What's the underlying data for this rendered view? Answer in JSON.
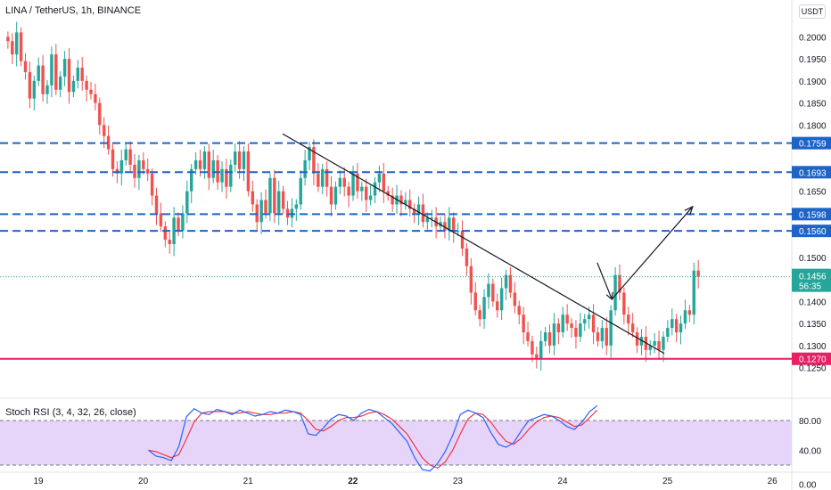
{
  "header": {
    "symbol_line": "LINA / TetherUS, 1h, BINANCE",
    "currency": "USDT"
  },
  "indicator": {
    "title": "Stoch RSI (3, 4, 32, 26, close)"
  },
  "colors": {
    "up": "#26a69a",
    "down": "#ef5350",
    "level": "#1e63c7",
    "support": "#e91e63",
    "current": "#26a69a",
    "trendline": "#131722",
    "rsi_k": "#2962ff",
    "rsi_d": "#f23645",
    "rsi_band": "#e1c9f7"
  },
  "chart_data": {
    "type": "candlestick",
    "price_axis": {
      "ticks": [
        "0.2000",
        "0.1950",
        "0.1900",
        "0.1850",
        "0.1800",
        "0.1650",
        "0.1500",
        "0.1400",
        "0.1350",
        "0.1300",
        "0.1250"
      ],
      "range": [
        0.1225,
        0.2035
      ]
    },
    "time_axis": {
      "ticks": [
        "19",
        "20",
        "21",
        "22",
        "23",
        "24",
        "25",
        "26"
      ]
    },
    "levels": [
      {
        "label": "0.1759",
        "value": 0.1759,
        "style": "dashed"
      },
      {
        "label": "0.1693",
        "value": 0.1693,
        "style": "dashed"
      },
      {
        "label": "0.1598",
        "value": 0.1598,
        "style": "dashed"
      },
      {
        "label": "0.1560",
        "value": 0.156,
        "style": "dashed"
      },
      {
        "label": "0.1270",
        "value": 0.127,
        "style": "solid"
      }
    ],
    "current_price": {
      "label": "0.1456",
      "countdown": "56:35",
      "value": 0.1456
    },
    "trendline": [
      [
        21.33,
        0.178
      ],
      [
        24.97,
        0.1282
      ]
    ],
    "projection_arrow": [
      [
        24.33,
        0.1488
      ],
      [
        24.47,
        0.1405
      ],
      [
        25.24,
        0.1615
      ]
    ],
    "series": [
      {
        "name": "LINA/USDT",
        "interval_days": 0.04167,
        "start_day": 18.71,
        "ohlc_closes": [
          0.199,
          0.196,
          0.201,
          0.1945,
          0.192,
          0.186,
          0.19,
          0.1935,
          0.187,
          0.189,
          0.196,
          0.188,
          0.191,
          0.195,
          0.1875,
          0.19,
          0.193,
          0.19,
          0.188,
          0.187,
          0.185,
          0.18,
          0.1775,
          0.1745,
          0.17,
          0.169,
          0.172,
          0.1745,
          0.171,
          0.168,
          0.172,
          0.17,
          0.169,
          0.164,
          0.16,
          0.157,
          0.154,
          0.153,
          0.159,
          0.156,
          0.16,
          0.165,
          0.17,
          0.172,
          0.17,
          0.174,
          0.168,
          0.172,
          0.167,
          0.17,
          0.166,
          0.171,
          0.174,
          0.17,
          0.174,
          0.165,
          0.162,
          0.158,
          0.163,
          0.16,
          0.168,
          0.16,
          0.165,
          0.161,
          0.159,
          0.161,
          0.162,
          0.168,
          0.172,
          0.175,
          0.169,
          0.166,
          0.17,
          0.166,
          0.162,
          0.166,
          0.168,
          0.166,
          0.164,
          0.169,
          0.165,
          0.166,
          0.163,
          0.164,
          0.167,
          0.169,
          0.165,
          0.164,
          0.162,
          0.164,
          0.162,
          0.163,
          0.161,
          0.16,
          0.162,
          0.158,
          0.159,
          0.159,
          0.157,
          0.158,
          0.156,
          0.159,
          0.156,
          0.156,
          0.152,
          0.148,
          0.142,
          0.138,
          0.136,
          0.141,
          0.144,
          0.14,
          0.138,
          0.143,
          0.146,
          0.142,
          0.139,
          0.137,
          0.133,
          0.131,
          0.128,
          0.127,
          0.131,
          0.133,
          0.13,
          0.135,
          0.133,
          0.137,
          0.135,
          0.134,
          0.132,
          0.135,
          0.136,
          0.137,
          0.133,
          0.131,
          0.134,
          0.13,
          0.138,
          0.146,
          0.142,
          0.137,
          0.135,
          0.133,
          0.13,
          0.132,
          0.129,
          0.13,
          0.131,
          0.129,
          0.132,
          0.134,
          0.136,
          0.133,
          0.135,
          0.138,
          0.137,
          0.147,
          0.1456
        ]
      }
    ],
    "stoch_rsi": {
      "axis_ticks": [
        "80.00",
        "40.00",
        "0.00"
      ],
      "band": [
        20,
        80
      ],
      "k": [
        40,
        32,
        30,
        26,
        45,
        85,
        96,
        90,
        88,
        95,
        92,
        88,
        94,
        90,
        86,
        88,
        92,
        90,
        94,
        92,
        88,
        62,
        60,
        70,
        82,
        88,
        86,
        80,
        90,
        95,
        92,
        84,
        76,
        64,
        52,
        30,
        14,
        12,
        22,
        38,
        60,
        88,
        94,
        90,
        84,
        64,
        48,
        44,
        50,
        66,
        80,
        84,
        88,
        86,
        80,
        72,
        68,
        78,
        92,
        100
      ],
      "d": [
        40,
        38,
        34,
        30,
        34,
        55,
        78,
        90,
        92,
        92,
        92,
        90,
        90,
        92,
        90,
        88,
        88,
        90,
        90,
        92,
        90,
        80,
        68,
        66,
        72,
        80,
        84,
        84,
        86,
        90,
        92,
        88,
        82,
        72,
        62,
        46,
        30,
        20,
        16,
        24,
        40,
        62,
        82,
        90,
        88,
        78,
        64,
        52,
        48,
        56,
        68,
        78,
        84,
        86,
        84,
        78,
        72,
        74,
        84,
        94
      ]
    }
  }
}
